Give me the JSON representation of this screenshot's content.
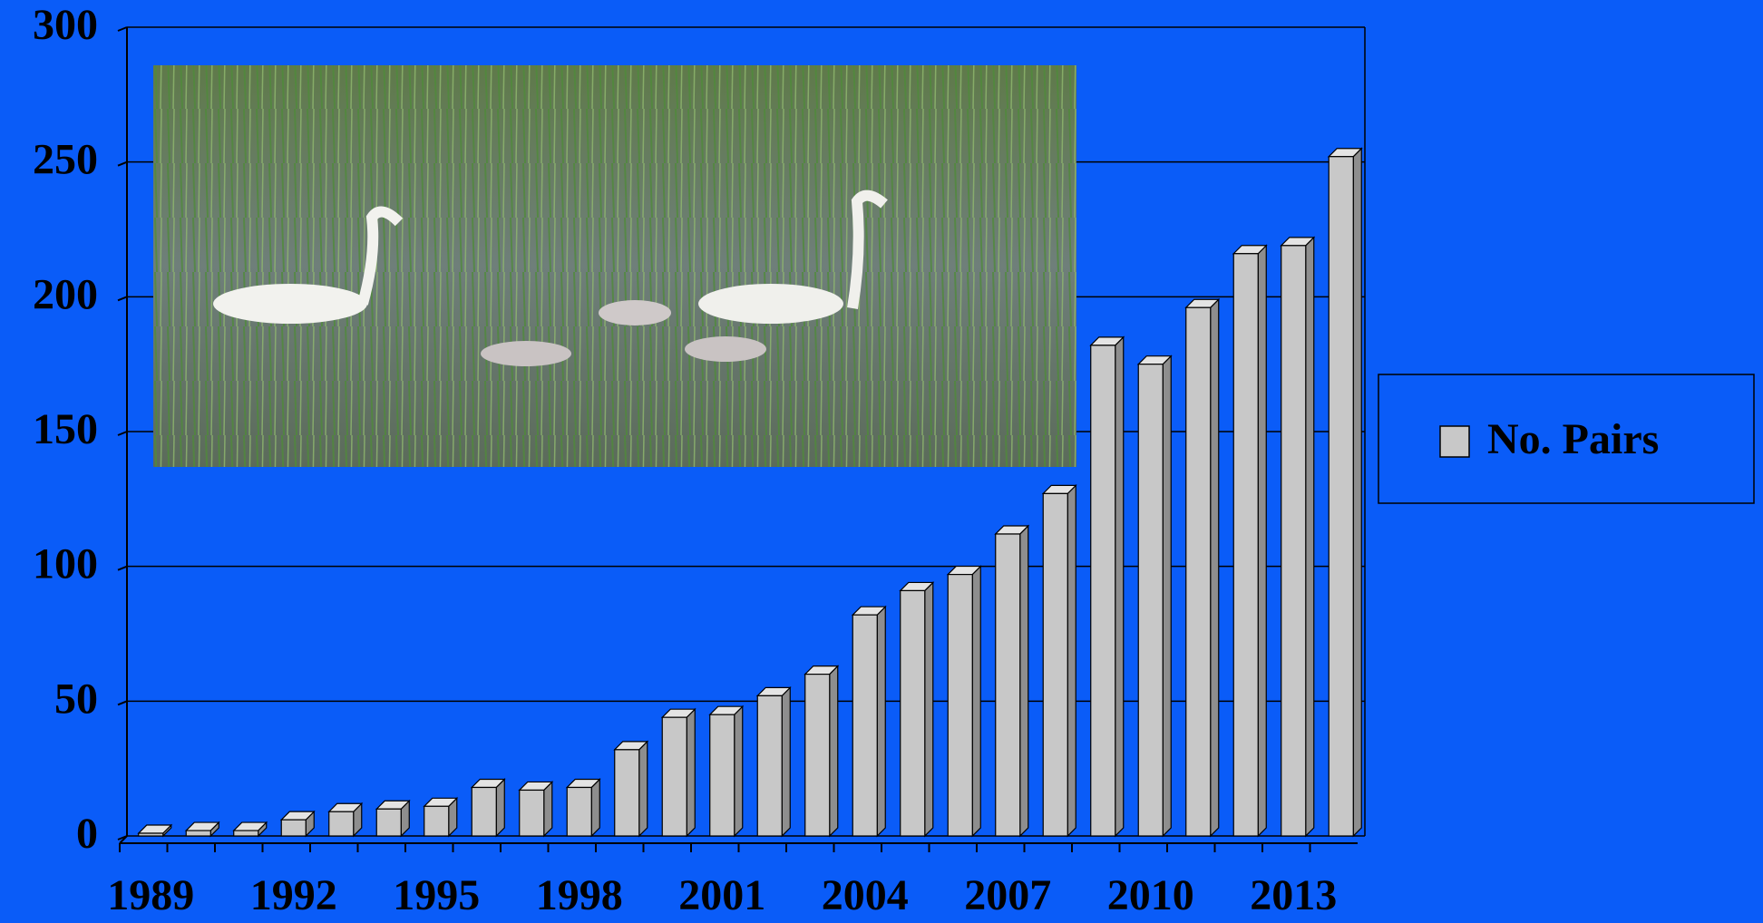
{
  "chart_data": {
    "type": "bar3d",
    "categories": [
      "1989",
      null,
      null,
      "1992",
      null,
      null,
      "1995",
      null,
      null,
      "1998",
      null,
      null,
      "2001",
      null,
      null,
      "2004",
      null,
      null,
      "2007",
      null,
      null,
      "2010",
      null,
      null,
      "2013",
      null
    ],
    "series": [
      {
        "name": "No. Pairs",
        "color": "#c8c8c8",
        "values": [
          1,
          2,
          2,
          6,
          9,
          10,
          11,
          18,
          17,
          18,
          32,
          44,
          45,
          52,
          60,
          82,
          91,
          97,
          112,
          127,
          182,
          175,
          196,
          216,
          219,
          252
        ]
      }
    ],
    "ylim": [
      0,
      300
    ],
    "yticks": [
      0,
      50,
      100,
      150,
      200,
      250,
      300
    ],
    "grid": true,
    "legend": "right"
  }
}
